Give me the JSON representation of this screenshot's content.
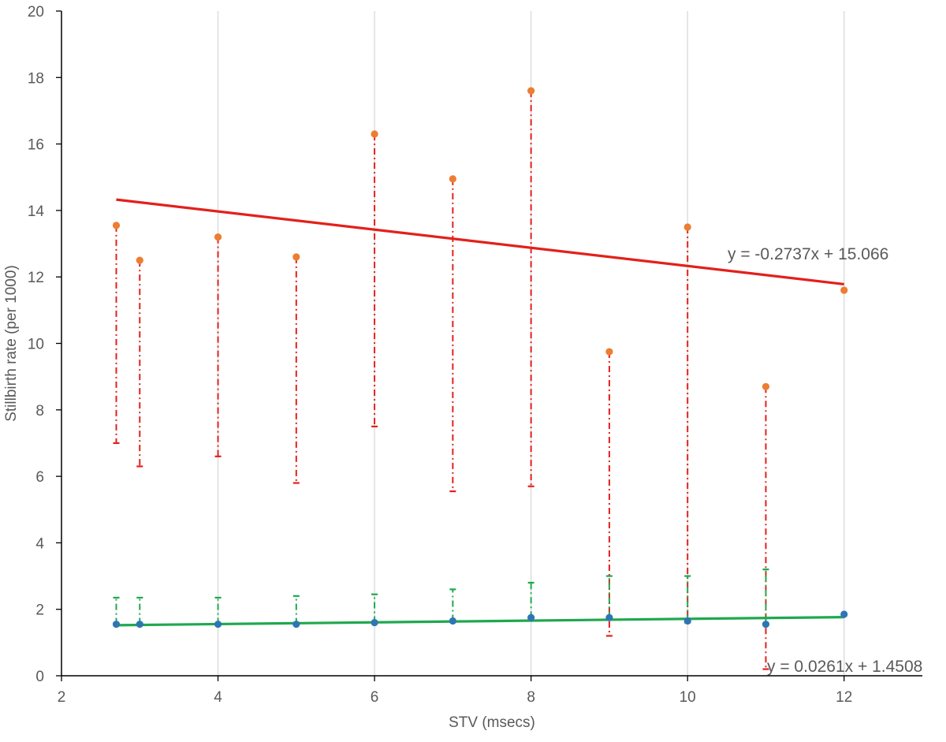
{
  "chart_data": {
    "type": "scatter",
    "title": "",
    "xlabel": "STV (msecs)",
    "ylabel": "Stillbirth rate (per 1000)",
    "xlim": [
      2,
      13
    ],
    "ylim": [
      0,
      20
    ],
    "x_ticks": [
      2,
      4,
      6,
      8,
      10,
      12
    ],
    "y_ticks": [
      0,
      2,
      4,
      6,
      8,
      10,
      12,
      14,
      16,
      18,
      20
    ],
    "grid": {
      "vertical": true,
      "horizontal": false
    },
    "legend": "none",
    "series": [
      {
        "key": "high",
        "marker_color": "#ED7D31",
        "error_color": "#E3201B",
        "points": [
          {
            "x": 2.7,
            "y": 13.55,
            "lower": 7.0
          },
          {
            "x": 3,
            "y": 12.5,
            "lower": 6.3
          },
          {
            "x": 4,
            "y": 13.2,
            "lower": 6.6
          },
          {
            "x": 5,
            "y": 12.6,
            "lower": 5.8
          },
          {
            "x": 6,
            "y": 16.3,
            "lower": 7.5
          },
          {
            "x": 7,
            "y": 14.95,
            "lower": 5.55
          },
          {
            "x": 8,
            "y": 17.6,
            "lower": 5.7
          },
          {
            "x": 9,
            "y": 9.75,
            "lower": 1.2
          },
          {
            "x": 10,
            "y": 13.5,
            "lower": 1.6
          },
          {
            "x": 11,
            "y": 8.7,
            "lower": 0.2
          },
          {
            "x": 12,
            "y": 11.6,
            "lower": null
          }
        ],
        "trendline": {
          "slope": -0.2737,
          "intercept": 15.066,
          "x_range": [
            2.7,
            12
          ],
          "color": "#E3201B",
          "label": "y = -0.2737x + 15.066"
        }
      },
      {
        "key": "low",
        "marker_color": "#2E75B6",
        "error_color": "#1FA84F",
        "points": [
          {
            "x": 2.7,
            "y": 1.55,
            "upper": 2.35
          },
          {
            "x": 3,
            "y": 1.55,
            "upper": 2.35
          },
          {
            "x": 4,
            "y": 1.55,
            "upper": 2.35
          },
          {
            "x": 5,
            "y": 1.55,
            "upper": 2.4
          },
          {
            "x": 6,
            "y": 1.6,
            "upper": 2.45
          },
          {
            "x": 7,
            "y": 1.65,
            "upper": 2.6
          },
          {
            "x": 8,
            "y": 1.75,
            "upper": 2.8
          },
          {
            "x": 9,
            "y": 1.75,
            "upper": 3.0
          },
          {
            "x": 10,
            "y": 1.65,
            "upper": 3.0
          },
          {
            "x": 11,
            "y": 1.55,
            "upper": 3.2
          },
          {
            "x": 12,
            "y": 1.85,
            "upper": null
          }
        ],
        "trendline": {
          "slope": 0.0261,
          "intercept": 1.4508,
          "x_range": [
            2.7,
            12
          ],
          "color": "#1FA84F",
          "label": "y = 0.0261x + 1.4508"
        }
      }
    ]
  }
}
